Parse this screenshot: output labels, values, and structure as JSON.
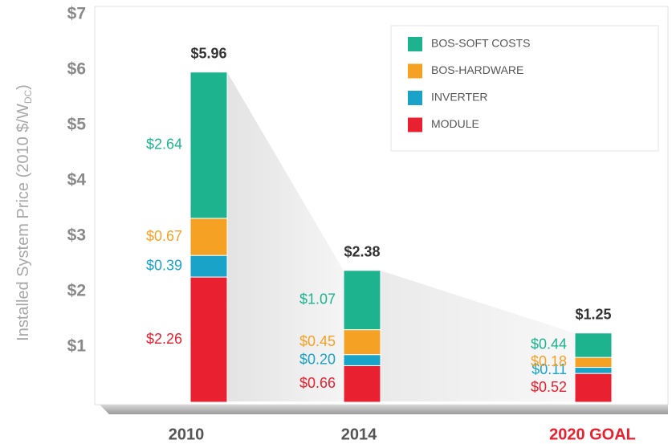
{
  "chart_data": {
    "type": "stacked_bar",
    "ylabel": [
      "Installed System Price (2010 $/W",
      "DC",
      ")"
    ],
    "categories": [
      "2010",
      "2014",
      "2020 GOAL"
    ],
    "category_colors": [
      "#555555",
      "#555555",
      "#e8202f"
    ],
    "series": [
      {
        "name": "MODULE",
        "color": "#e8202f",
        "values": [
          2.26,
          0.66,
          0.52
        ],
        "value_labels": [
          "$2.26",
          "$0.66",
          "$0.52"
        ]
      },
      {
        "name": "INVERTER",
        "color": "#1aa3c8",
        "values": [
          0.39,
          0.2,
          0.11
        ],
        "value_labels": [
          "$0.39",
          "$0.20",
          "$0.11"
        ]
      },
      {
        "name": "BOS-HARDWARE",
        "color": "#f5a124",
        "values": [
          0.67,
          0.45,
          0.18
        ],
        "value_labels": [
          "$0.67",
          "$0.45",
          "$0.18"
        ]
      },
      {
        "name": "BOS-SOFT COSTS",
        "color": "#1db38f",
        "values": [
          2.64,
          1.07,
          0.44
        ],
        "value_labels": [
          "$2.64",
          "$1.07",
          "$0.44"
        ]
      }
    ],
    "totals": {
      "values": [
        5.96,
        2.38,
        1.25
      ],
      "value_labels": [
        "$5.96",
        "$2.38",
        "$1.25"
      ]
    },
    "ylim": [
      0,
      7
    ],
    "yticks": [
      {
        "value": 1,
        "label": "$1"
      },
      {
        "value": 2,
        "label": "$2"
      },
      {
        "value": 3,
        "label": "$3"
      },
      {
        "value": 4,
        "label": "$4"
      },
      {
        "value": 5,
        "label": "$5"
      },
      {
        "value": 6,
        "label": "$6"
      },
      {
        "value": 7,
        "label": "$7"
      }
    ],
    "grid": false,
    "legend": "upper right"
  }
}
